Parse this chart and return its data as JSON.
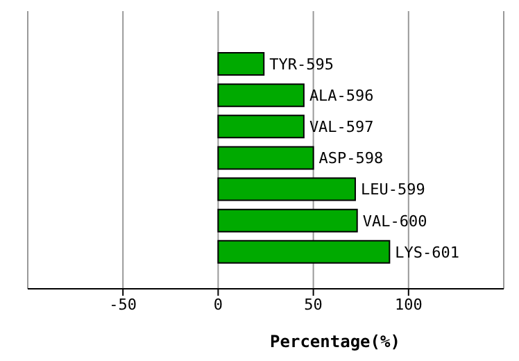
{
  "chart_data": {
    "type": "bar",
    "orientation": "horizontal",
    "xlabel": "Percentage(%)",
    "categories": [
      "TYR-595",
      "ALA-596",
      "VAL-597",
      "ASP-598",
      "LEU-599",
      "VAL-600",
      "LYS-601"
    ],
    "values": [
      24,
      45,
      45,
      50,
      72,
      73,
      90
    ],
    "color": "#00aa00",
    "xlim": [
      -100,
      150
    ],
    "xticks": [
      -50,
      0,
      50,
      100
    ],
    "grid": "x"
  }
}
